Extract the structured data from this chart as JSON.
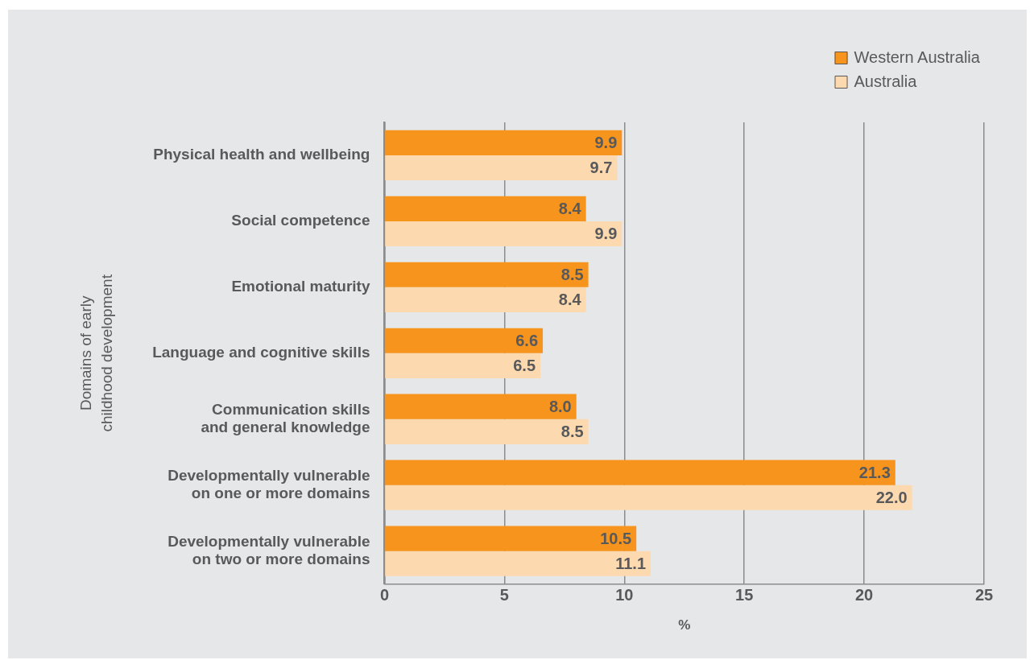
{
  "chart_data": {
    "type": "bar",
    "orientation": "horizontal",
    "ylabel": "Domains of early\nchildhood development",
    "xlabel": "%",
    "categories": [
      "Physical health and wellbeing",
      "Social competence",
      "Emotional maturity",
      "Language and cognitive skills",
      "Communication skills\nand general knowledge",
      "Developmentally vulnerable\non one or more domains",
      "Developmentally vulnerable\non two or more domains"
    ],
    "series": [
      {
        "name": "Western Australia",
        "color": "#f7941d",
        "values": [
          9.9,
          8.4,
          8.5,
          6.6,
          8.0,
          21.3,
          10.5
        ],
        "value_labels": [
          "9.9",
          "8.4",
          "8.5",
          "6.6",
          "8.0",
          "21.3",
          "10.5"
        ]
      },
      {
        "name": "Australia",
        "color": "#fdd9b0",
        "values": [
          9.7,
          9.9,
          8.4,
          6.5,
          8.5,
          22.0,
          11.1
        ],
        "value_labels": [
          "9.7",
          "9.9",
          "8.4",
          "6.5",
          "8.5",
          "22.0",
          "11.1"
        ]
      }
    ],
    "xlim": [
      0,
      25
    ],
    "xticks": [
      0,
      5,
      10,
      15,
      20,
      25
    ],
    "grid": "x",
    "legend": "top right"
  }
}
